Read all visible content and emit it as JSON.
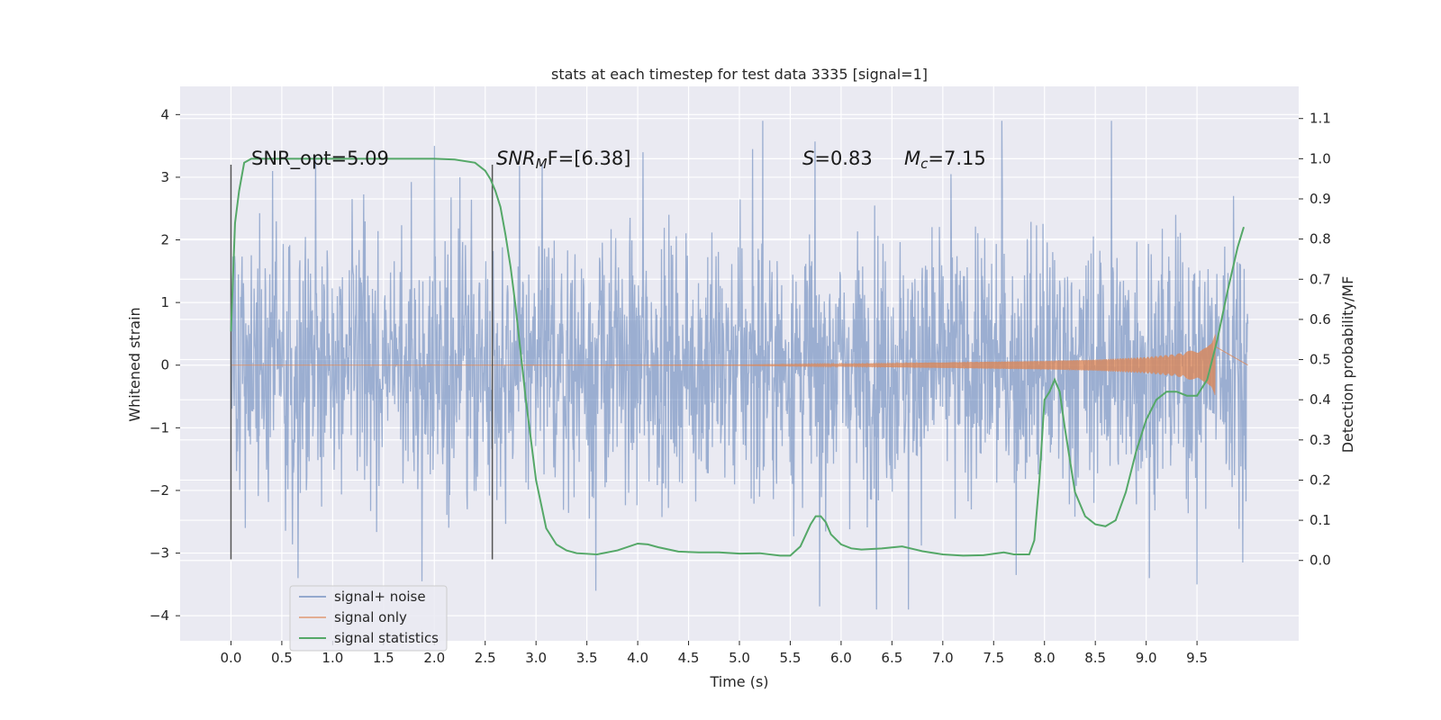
{
  "chart_data": {
    "type": "line",
    "title": "stats at each timestep for test data 3335 [signal=1]",
    "xlabel": "Time (s)",
    "ylabel": "Whitened strain",
    "ylabel_right": "Detection probability/MF",
    "xlim": [
      -0.5,
      10.5
    ],
    "ylim": [
      -4.4,
      4.45
    ],
    "ylim_right": [
      -0.2,
      1.18
    ],
    "x_ticks": [
      "0.0",
      "0.5",
      "1.0",
      "1.5",
      "2.0",
      "2.5",
      "3.0",
      "3.5",
      "4.0",
      "4.5",
      "5.0",
      "5.5",
      "6.0",
      "6.5",
      "7.0",
      "7.5",
      "8.0",
      "8.5",
      "9.0",
      "9.5"
    ],
    "y_ticks": [
      "4",
      "3",
      "2",
      "1",
      "0",
      "−1",
      "−2",
      "−3",
      "−4"
    ],
    "y_ticks_right": [
      "1.1",
      "1.0",
      "0.9",
      "0.8",
      "0.7",
      "0.6",
      "0.5",
      "0.4",
      "0.3",
      "0.2",
      "0.1",
      "0.0"
    ],
    "grid": true,
    "legend_position": "lower-left",
    "colors": {
      "background": "#eaeaf2",
      "noise": "#4c72b0",
      "signal": "#dd8452",
      "statistics": "#55a868",
      "markers": "#555555"
    },
    "annotations": {
      "snr_opt": "SNR_opt=5.09",
      "snr_mf_main": "SNR",
      "snr_mf_sub": "M",
      "snr_mf_rest": "F=[6.38]",
      "s_var": "S",
      "s_rest": "=0.83",
      "mc_var": "M",
      "mc_sub": "c",
      "mc_rest": "=7.15"
    },
    "vertical_markers": [
      {
        "x": 0.0,
        "ymin": -3.1,
        "ymax": 3.2
      },
      {
        "x": 2.57,
        "ymin": -3.1,
        "ymax": 3.2
      }
    ],
    "series": [
      {
        "name": "signal+ noise",
        "x_range": [
          0.0,
          10.0
        ],
        "typical_amplitude": 1.3,
        "peaks": [
          {
            "x": 0.41,
            "y": 3.1
          },
          {
            "x": 0.66,
            "y": -3.4
          },
          {
            "x": 0.83,
            "y": 3.35
          },
          {
            "x": 1.88,
            "y": -3.45
          },
          {
            "x": 2.0,
            "y": 3.5
          },
          {
            "x": 2.25,
            "y": 3.0
          },
          {
            "x": 3.06,
            "y": 3.2
          },
          {
            "x": 3.59,
            "y": -3.6
          },
          {
            "x": 4.05,
            "y": 3.4
          },
          {
            "x": 5.23,
            "y": 4.05
          },
          {
            "x": 5.13,
            "y": 3.45
          },
          {
            "x": 5.79,
            "y": -3.85
          },
          {
            "x": 6.35,
            "y": -3.95
          },
          {
            "x": 6.66,
            "y": -3.9
          },
          {
            "x": 7.08,
            "y": 3.05
          },
          {
            "x": 7.58,
            "y": 3.95
          },
          {
            "x": 7.72,
            "y": -3.35
          },
          {
            "x": 8.66,
            "y": 3.9
          },
          {
            "x": 9.03,
            "y": -3.4
          },
          {
            "x": 9.5,
            "y": -3.5
          },
          {
            "x": 9.86,
            "y": 2.7
          },
          {
            "x": 9.95,
            "y": -3.15
          }
        ]
      },
      {
        "name": "signal only",
        "x": [
          0.0,
          5.0,
          6.0,
          7.0,
          8.0,
          8.5,
          9.0,
          9.3,
          9.5,
          9.6,
          9.65,
          9.68
        ],
        "envelope": [
          0.0,
          0.005,
          0.02,
          0.045,
          0.07,
          0.09,
          0.13,
          0.18,
          0.26,
          0.36,
          0.5,
          0.58
        ]
      },
      {
        "name": "signal statistics",
        "x": [
          0.0,
          0.04,
          0.08,
          0.13,
          0.2,
          0.4,
          1.0,
          2.0,
          2.2,
          2.4,
          2.5,
          2.55,
          2.6,
          2.65,
          2.7,
          2.75,
          2.8,
          2.9,
          3.0,
          3.1,
          3.2,
          3.3,
          3.4,
          3.6,
          3.8,
          4.0,
          4.1,
          4.2,
          4.4,
          4.6,
          4.8,
          5.0,
          5.2,
          5.4,
          5.5,
          5.6,
          5.7,
          5.75,
          5.8,
          5.85,
          5.9,
          6.0,
          6.1,
          6.2,
          6.4,
          6.6,
          6.8,
          7.0,
          7.2,
          7.4,
          7.6,
          7.7,
          7.85,
          7.9,
          7.95,
          8.0,
          8.05,
          8.1,
          8.15,
          8.2,
          8.3,
          8.4,
          8.5,
          8.6,
          8.7,
          8.8,
          8.9,
          9.0,
          9.1,
          9.2,
          9.3,
          9.4,
          9.5,
          9.6,
          9.7,
          9.8,
          9.9,
          9.96
        ],
        "y": [
          0.57,
          0.84,
          0.92,
          0.99,
          1.0,
          1.0,
          1.0,
          1.0,
          0.998,
          0.99,
          0.97,
          0.95,
          0.92,
          0.88,
          0.81,
          0.73,
          0.63,
          0.4,
          0.2,
          0.08,
          0.04,
          0.025,
          0.018,
          0.015,
          0.025,
          0.042,
          0.04,
          0.033,
          0.022,
          0.02,
          0.02,
          0.017,
          0.018,
          0.012,
          0.012,
          0.035,
          0.09,
          0.11,
          0.11,
          0.095,
          0.065,
          0.04,
          0.03,
          0.027,
          0.03,
          0.035,
          0.023,
          0.015,
          0.012,
          0.013,
          0.02,
          0.015,
          0.015,
          0.05,
          0.2,
          0.4,
          0.42,
          0.45,
          0.42,
          0.33,
          0.17,
          0.11,
          0.09,
          0.085,
          0.1,
          0.17,
          0.27,
          0.35,
          0.4,
          0.42,
          0.42,
          0.41,
          0.41,
          0.45,
          0.55,
          0.67,
          0.78,
          0.83
        ]
      }
    ]
  }
}
